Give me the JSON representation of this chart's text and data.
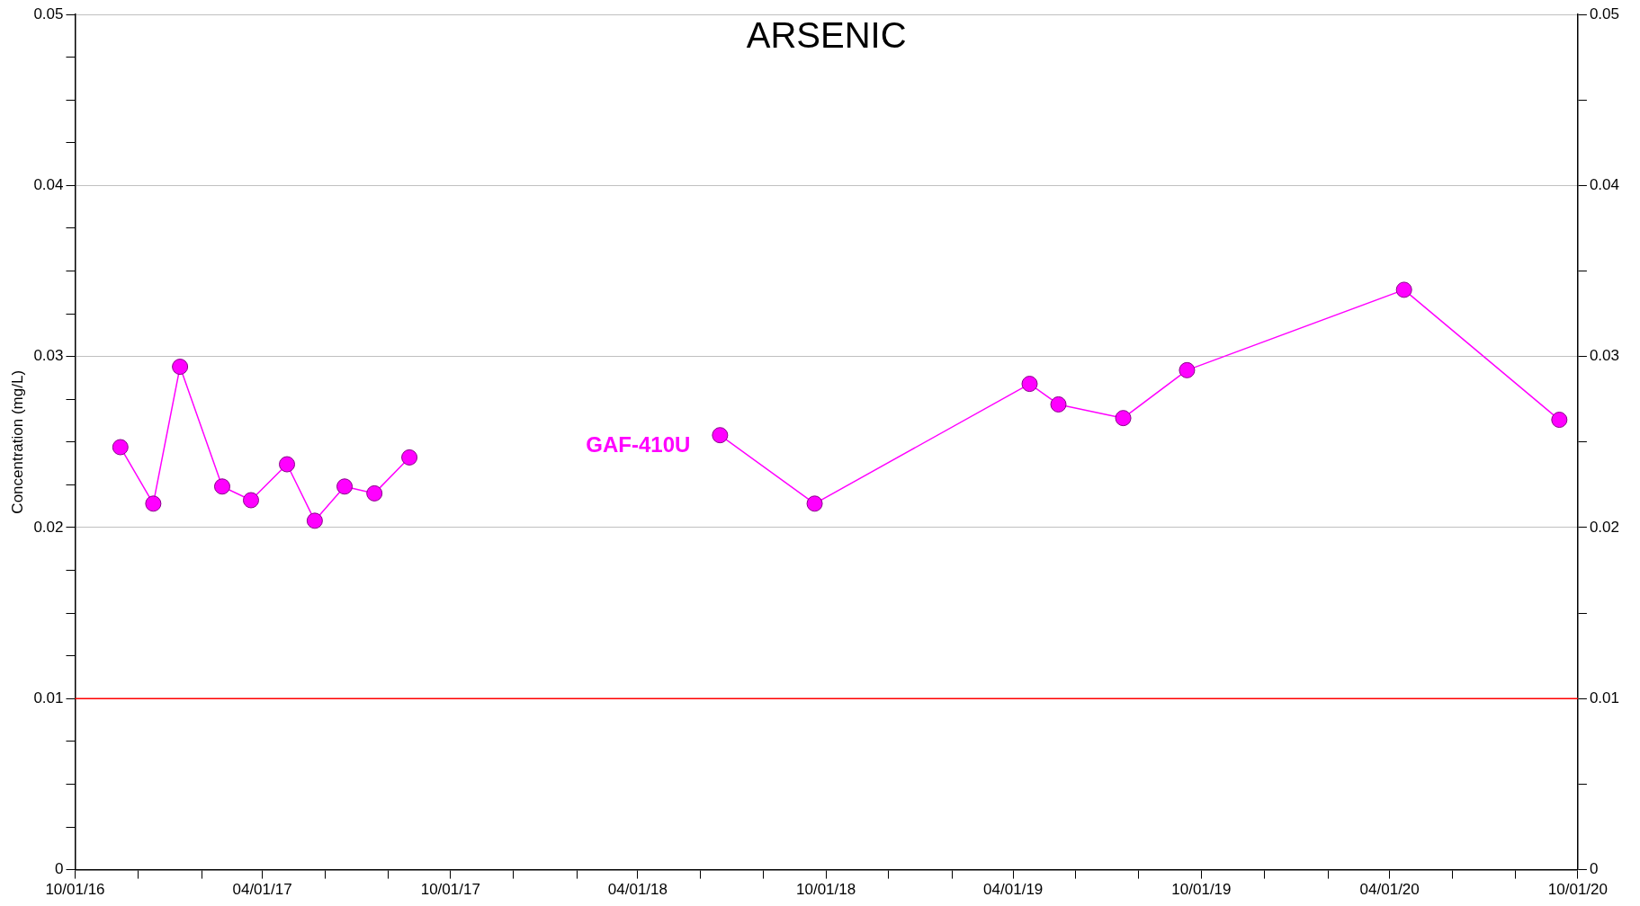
{
  "chart_data": {
    "type": "line",
    "title": "ARSENIC",
    "ylabel": "Concentration (mg/L)",
    "x": [
      "2016-11-14",
      "2016-12-16",
      "2017-01-11",
      "2017-02-21",
      "2017-03-21",
      "2017-04-25",
      "2017-05-22",
      "2017-06-20",
      "2017-07-19",
      "2017-08-22",
      "2018-01-15",
      "2018-06-20",
      "2018-09-20",
      "2019-04-17",
      "2019-05-15",
      "2019-07-17",
      "2019-09-17",
      "2020-04-15",
      "2020-09-13"
    ],
    "series": [
      {
        "name": "GAF-410U",
        "color": "#ff00ff",
        "values": [
          0.0247,
          0.0214,
          0.0294,
          0.0224,
          0.0216,
          0.0237,
          0.0204,
          0.0224,
          0.022,
          0.0241,
          null,
          0.0254,
          0.0214,
          0.0284,
          0.0272,
          0.0264,
          0.0292,
          0.0339,
          0.0263
        ]
      }
    ],
    "xlim": [
      "2016-10-01",
      "2020-10-01"
    ],
    "xticks": [
      {
        "value": "2016-10-01",
        "label": "10/01/16"
      },
      {
        "value": "2016-12-01",
        "label": null
      },
      {
        "value": "2017-02-01",
        "label": null
      },
      {
        "value": "2017-04-01",
        "label": "04/01/17"
      },
      {
        "value": "2017-06-01",
        "label": null
      },
      {
        "value": "2017-08-01",
        "label": null
      },
      {
        "value": "2017-10-01",
        "label": "10/01/17"
      },
      {
        "value": "2017-12-01",
        "label": null
      },
      {
        "value": "2018-02-01",
        "label": null
      },
      {
        "value": "2018-04-01",
        "label": "04/01/18"
      },
      {
        "value": "2018-06-01",
        "label": null
      },
      {
        "value": "2018-08-01",
        "label": null
      },
      {
        "value": "2018-10-01",
        "label": "10/01/18"
      },
      {
        "value": "2018-12-01",
        "label": null
      },
      {
        "value": "2019-02-01",
        "label": null
      },
      {
        "value": "2019-04-01",
        "label": "04/01/19"
      },
      {
        "value": "2019-06-01",
        "label": null
      },
      {
        "value": "2019-08-01",
        "label": null
      },
      {
        "value": "2019-10-01",
        "label": "10/01/19"
      },
      {
        "value": "2019-12-01",
        "label": null
      },
      {
        "value": "2020-02-01",
        "label": null
      },
      {
        "value": "2020-04-01",
        "label": "04/01/20"
      },
      {
        "value": "2020-06-01",
        "label": null
      },
      {
        "value": "2020-08-01",
        "label": null
      },
      {
        "value": "2020-10-01",
        "label": "10/01/20"
      }
    ],
    "ylim": [
      0,
      0.05
    ],
    "yticks": [
      0,
      {
        "value": 0.0025,
        "label": null
      },
      {
        "value": 0.005,
        "label": null
      },
      {
        "value": 0.0075,
        "label": null
      },
      0.01,
      {
        "value": 0.0125,
        "label": null
      },
      {
        "value": 0.015,
        "label": null
      },
      {
        "value": 0.0175,
        "label": null
      },
      0.02,
      {
        "value": 0.0225,
        "label": null
      },
      {
        "value": 0.025,
        "label": null
      },
      {
        "value": 0.0275,
        "label": null
      },
      0.03,
      {
        "value": 0.0325,
        "label": null
      },
      {
        "value": 0.035,
        "label": null
      },
      {
        "value": 0.0375,
        "label": null
      },
      0.04,
      {
        "value": 0.0425,
        "label": null
      },
      {
        "value": 0.045,
        "label": null
      },
      {
        "value": 0.0475,
        "label": null
      },
      0.05
    ],
    "y2lim": [
      0,
      0.05
    ],
    "y2ticks": [
      0,
      {
        "value": 0.005,
        "label": null
      },
      0.01,
      {
        "value": 0.015,
        "label": null
      },
      0.02,
      {
        "value": 0.025,
        "label": null
      },
      0.03,
      {
        "value": 0.035,
        "label": null
      },
      0.04,
      {
        "value": 0.045,
        "label": null
      },
      0.05
    ],
    "ref_lines": [
      {
        "axis": "y",
        "value": 0.01,
        "color": "#ff0000"
      }
    ],
    "grid": "y",
    "legend": false,
    "marker": "circle",
    "line_style": "solid"
  }
}
